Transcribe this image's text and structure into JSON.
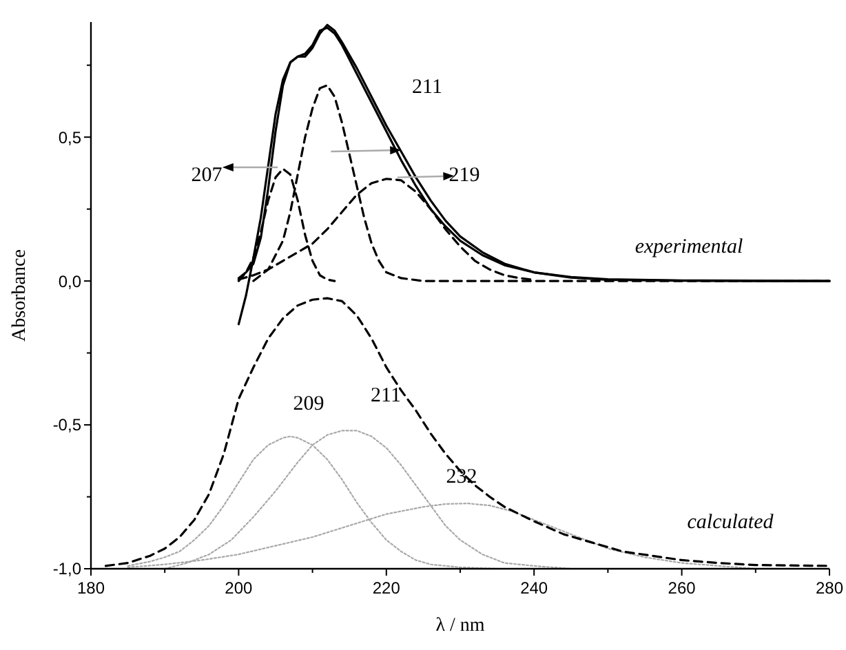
{
  "chart_data": {
    "type": "line",
    "xlabel": "λ / nm",
    "ylabel": "Absorbance",
    "xlim": [
      180,
      280
    ],
    "ylim": [
      -1.0,
      0.9
    ],
    "xticks": [
      180,
      {
        "value": 190,
        "label": null
      },
      200,
      {
        "value": 210,
        "label": null
      },
      220,
      {
        "value": 230,
        "label": null
      },
      240,
      {
        "value": 250,
        "label": null
      },
      260,
      {
        "value": 270,
        "label": null
      },
      280
    ],
    "yticks": [
      {
        "value": -1.0,
        "label": "-1,0"
      },
      {
        "value": -0.75,
        "label": null
      },
      {
        "value": -0.5,
        "label": "-0,5"
      },
      {
        "value": -0.25,
        "label": null
      },
      {
        "value": 0,
        "label": "0,0"
      },
      {
        "value": 0.25,
        "label": null
      },
      {
        "value": 0.5,
        "label": "0,5"
      },
      {
        "value": 0.75,
        "label": null
      }
    ],
    "series": [
      {
        "color": "#000000",
        "line_style": "solid",
        "x": [
          200,
          201,
          202,
          203,
          204,
          205,
          206,
          207,
          208,
          209,
          210,
          211,
          212,
          213,
          214,
          215,
          216,
          218,
          220,
          222,
          224,
          226,
          228,
          230,
          233,
          236,
          240,
          245,
          250,
          260,
          270,
          280
        ],
        "values": [
          -0.15,
          -0.05,
          0.08,
          0.22,
          0.4,
          0.58,
          0.7,
          0.76,
          0.78,
          0.79,
          0.82,
          0.87,
          0.88,
          0.86,
          0.82,
          0.77,
          0.72,
          0.62,
          0.52,
          0.42,
          0.33,
          0.25,
          0.19,
          0.14,
          0.09,
          0.055,
          0.03,
          0.014,
          0.006,
          0.002,
          0.001,
          0
        ]
      },
      {
        "color": "#000000",
        "line_style": "solid",
        "x": [
          200,
          201,
          202,
          203,
          204,
          205,
          206,
          207,
          208,
          209,
          210,
          211,
          212,
          213,
          214,
          216,
          218,
          220,
          222,
          224,
          226,
          228,
          230,
          233,
          236,
          240,
          245,
          250,
          260,
          270,
          280
        ],
        "values": [
          0.01,
          0.03,
          0.06,
          0.15,
          0.32,
          0.52,
          0.68,
          0.76,
          0.78,
          0.78,
          0.81,
          0.86,
          0.89,
          0.87,
          0.83,
          0.74,
          0.64,
          0.54,
          0.45,
          0.36,
          0.28,
          0.21,
          0.155,
          0.1,
          0.06,
          0.03,
          0.012,
          0.004,
          0.001,
          0,
          0
        ]
      },
      {
        "color": "#000000",
        "line_style": "dashed",
        "x": [
          200,
          201,
          202,
          203,
          204,
          205,
          206,
          207,
          208,
          209,
          210,
          211,
          212,
          213
        ],
        "values": [
          0.0,
          0.03,
          0.08,
          0.17,
          0.28,
          0.36,
          0.39,
          0.37,
          0.28,
          0.16,
          0.07,
          0.02,
          0.005,
          0
        ]
      },
      {
        "color": "#000000",
        "line_style": "dashed",
        "x": [
          202,
          204,
          206,
          207,
          208,
          209,
          210,
          211,
          212,
          213,
          214,
          215,
          216,
          217,
          218,
          219,
          220,
          222,
          225,
          230,
          240,
          250,
          260,
          270,
          280
        ],
        "values": [
          0,
          0.04,
          0.14,
          0.24,
          0.37,
          0.5,
          0.6,
          0.67,
          0.68,
          0.64,
          0.55,
          0.44,
          0.33,
          0.22,
          0.13,
          0.07,
          0.03,
          0.01,
          0,
          0,
          0,
          0,
          0,
          0,
          0
        ]
      },
      {
        "color": "#000000",
        "line_style": "dashed",
        "x": [
          200,
          202,
          204,
          206,
          208,
          210,
          212,
          214,
          216,
          218,
          220,
          222,
          224,
          226,
          228,
          230,
          232,
          234,
          236,
          238,
          240
        ],
        "values": [
          0.005,
          0.02,
          0.04,
          0.07,
          0.1,
          0.13,
          0.18,
          0.24,
          0.3,
          0.34,
          0.355,
          0.35,
          0.31,
          0.25,
          0.18,
          0.12,
          0.07,
          0.04,
          0.02,
          0.01,
          0.004
        ]
      },
      {
        "color": "#a8a8a8",
        "line_style": "dotted",
        "x": [
          185,
          188,
          190,
          192,
          194,
          196,
          198,
          200,
          202,
          204,
          206,
          207,
          208,
          210,
          212,
          214,
          216,
          218,
          220,
          222,
          224,
          226,
          228,
          230,
          235,
          240
        ],
        "values": [
          -0.99,
          -0.975,
          -0.96,
          -0.94,
          -0.9,
          -0.85,
          -0.78,
          -0.7,
          -0.62,
          -0.57,
          -0.545,
          -0.54,
          -0.545,
          -0.57,
          -0.62,
          -0.69,
          -0.77,
          -0.84,
          -0.9,
          -0.94,
          -0.97,
          -0.985,
          -0.99,
          -0.995,
          -1.0,
          -1.0
        ]
      },
      {
        "color": "#a8a8a8",
        "line_style": "dotted",
        "x": [
          190,
          193,
          196,
          199,
          202,
          205,
          208,
          210,
          212,
          214,
          216,
          218,
          220,
          222,
          224,
          226,
          228,
          230,
          233,
          236,
          240,
          245,
          250
        ],
        "values": [
          -1,
          -0.98,
          -0.95,
          -0.9,
          -0.82,
          -0.73,
          -0.63,
          -0.57,
          -0.535,
          -0.52,
          -0.52,
          -0.54,
          -0.58,
          -0.64,
          -0.71,
          -0.78,
          -0.85,
          -0.9,
          -0.95,
          -0.98,
          -0.99,
          -1,
          -1
        ]
      },
      {
        "color": "#a8a8a8",
        "line_style": "dotted",
        "x": [
          185,
          190,
          195,
          200,
          205,
          210,
          215,
          220,
          225,
          228,
          231,
          234,
          237,
          240,
          245,
          250,
          255,
          260,
          265,
          270
        ],
        "values": [
          -0.995,
          -0.985,
          -0.97,
          -0.95,
          -0.92,
          -0.89,
          -0.85,
          -0.81,
          -0.785,
          -0.775,
          -0.773,
          -0.78,
          -0.8,
          -0.83,
          -0.88,
          -0.93,
          -0.96,
          -0.98,
          -0.99,
          -1.0
        ]
      },
      {
        "color": "#000000",
        "line_style": "dashed",
        "x": [
          182,
          185,
          188,
          190,
          192,
          194,
          196,
          198,
          200,
          202,
          204,
          206,
          208,
          210,
          212,
          214,
          216,
          218,
          220,
          222,
          224,
          226,
          228,
          230,
          232,
          234,
          236,
          238,
          240,
          244,
          248,
          252,
          256,
          260,
          265,
          270,
          280
        ],
        "values": [
          -0.99,
          -0.98,
          -0.955,
          -0.93,
          -0.89,
          -0.83,
          -0.74,
          -0.6,
          -0.41,
          -0.3,
          -0.2,
          -0.13,
          -0.085,
          -0.065,
          -0.06,
          -0.07,
          -0.12,
          -0.2,
          -0.3,
          -0.38,
          -0.45,
          -0.53,
          -0.6,
          -0.66,
          -0.71,
          -0.75,
          -0.785,
          -0.81,
          -0.835,
          -0.88,
          -0.91,
          -0.94,
          -0.955,
          -0.97,
          -0.98,
          -0.987,
          -0.99
        ]
      }
    ],
    "annotations": [
      "211",
      "207",
      "219",
      "experimental",
      "209",
      "211",
      "232",
      "calculated"
    ]
  }
}
